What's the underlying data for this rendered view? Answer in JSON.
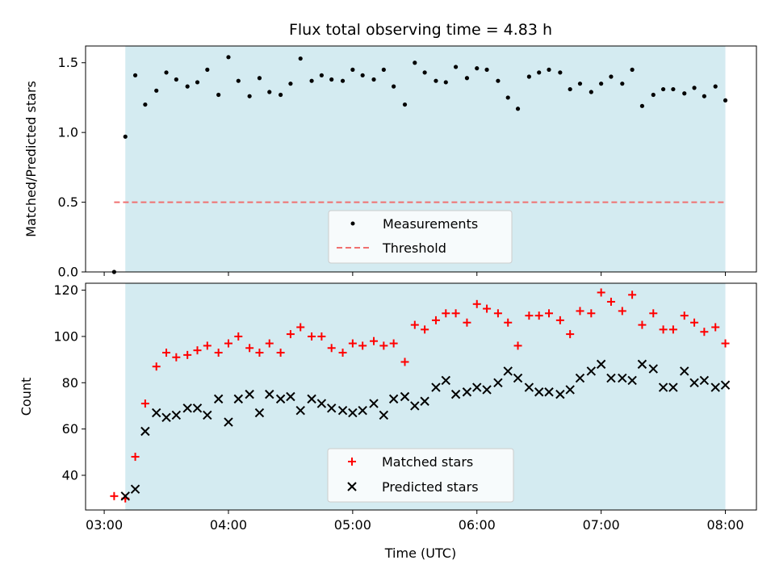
{
  "chart_data": [
    {
      "type": "scatter",
      "title": "Flux total observing time = 4.83 h",
      "ylabel": "Matched/Predicted stars",
      "xlabel": "",
      "x_unit": "hours UTC",
      "xlim": [
        2.85,
        8.25
      ],
      "ylim": [
        0.0,
        1.62
      ],
      "yticks": [
        0.0,
        0.5,
        1.0,
        1.5
      ],
      "ytick_labels": [
        "0.0",
        "0.5",
        "1.0",
        "1.5"
      ],
      "xticks": [
        3,
        4,
        5,
        6,
        7,
        8
      ],
      "shaded_span": [
        3.17,
        8.0
      ],
      "shade_color": "#d4ebf1",
      "legend_position": "lower center",
      "series": [
        {
          "name": "Measurements",
          "marker": "dot",
          "color": "#000000",
          "x": [
            3.08,
            3.17,
            3.25,
            3.33,
            3.42,
            3.5,
            3.58,
            3.67,
            3.75,
            3.83,
            3.92,
            4.0,
            4.08,
            4.17,
            4.25,
            4.33,
            4.42,
            4.5,
            4.58,
            4.67,
            4.75,
            4.83,
            4.92,
            5.0,
            5.08,
            5.17,
            5.25,
            5.33,
            5.42,
            5.5,
            5.58,
            5.67,
            5.75,
            5.83,
            5.92,
            6.0,
            6.08,
            6.17,
            6.25,
            6.33,
            6.42,
            6.5,
            6.58,
            6.67,
            6.75,
            6.83,
            6.92,
            7.0,
            7.08,
            7.17,
            7.25,
            7.33,
            7.42,
            7.5,
            7.58,
            7.67,
            7.75,
            7.83,
            7.92,
            8.0
          ],
          "y": [
            0.0,
            0.97,
            1.41,
            1.2,
            1.3,
            1.43,
            1.38,
            1.33,
            1.36,
            1.45,
            1.27,
            1.54,
            1.37,
            1.26,
            1.39,
            1.29,
            1.27,
            1.35,
            1.53,
            1.37,
            1.41,
            1.38,
            1.37,
            1.45,
            1.41,
            1.38,
            1.45,
            1.33,
            1.2,
            1.5,
            1.43,
            1.37,
            1.36,
            1.47,
            1.39,
            1.46,
            1.45,
            1.37,
            1.25,
            1.17,
            1.4,
            1.43,
            1.45,
            1.43,
            1.31,
            1.35,
            1.29,
            1.35,
            1.4,
            1.35,
            1.45,
            1.19,
            1.27,
            1.31,
            1.31,
            1.28,
            1.32,
            1.26,
            1.33,
            1.23
          ]
        },
        {
          "name": "Threshold",
          "marker": "dashed-line",
          "color": "#f07070",
          "x": [
            3.08,
            8.0
          ],
          "y": [
            0.5,
            0.5
          ]
        }
      ]
    },
    {
      "type": "scatter",
      "title": "",
      "ylabel": "Count",
      "xlabel": "Time (UTC)",
      "x_unit": "hours UTC",
      "xlim": [
        2.85,
        8.25
      ],
      "ylim": [
        25,
        123
      ],
      "yticks": [
        40,
        60,
        80,
        100,
        120
      ],
      "ytick_labels": [
        "40",
        "60",
        "80",
        "100",
        "120"
      ],
      "xticks": [
        3,
        4,
        5,
        6,
        7,
        8
      ],
      "xtick_labels": [
        "03:00",
        "04:00",
        "05:00",
        "06:00",
        "07:00",
        "08:00"
      ],
      "shaded_span": [
        3.17,
        8.0
      ],
      "shade_color": "#d4ebf1",
      "legend_position": "lower center",
      "series": [
        {
          "name": "Matched stars",
          "marker": "plus",
          "color": "#ff0000",
          "x": [
            3.08,
            3.17,
            3.25,
            3.33,
            3.42,
            3.5,
            3.58,
            3.67,
            3.75,
            3.83,
            3.92,
            4.0,
            4.08,
            4.17,
            4.25,
            4.33,
            4.42,
            4.5,
            4.58,
            4.67,
            4.75,
            4.83,
            4.92,
            5.0,
            5.08,
            5.17,
            5.25,
            5.33,
            5.42,
            5.5,
            5.58,
            5.67,
            5.75,
            5.83,
            5.92,
            6.0,
            6.08,
            6.17,
            6.25,
            6.33,
            6.42,
            6.5,
            6.58,
            6.67,
            6.75,
            6.83,
            6.92,
            7.0,
            7.08,
            7.17,
            7.25,
            7.33,
            7.42,
            7.5,
            7.58,
            7.67,
            7.75,
            7.83,
            7.92,
            8.0
          ],
          "y": [
            31,
            30,
            48,
            71,
            87,
            93,
            91,
            92,
            94,
            96,
            93,
            97,
            100,
            95,
            93,
            97,
            93,
            101,
            104,
            100,
            100,
            95,
            93,
            97,
            96,
            98,
            96,
            97,
            89,
            105,
            103,
            107,
            110,
            110,
            106,
            114,
            112,
            110,
            106,
            96,
            109,
            109,
            110,
            107,
            101,
            111,
            110,
            119,
            115,
            111,
            118,
            105,
            110,
            103,
            103,
            109,
            106,
            102,
            104,
            97
          ]
        },
        {
          "name": "Predicted stars",
          "marker": "x",
          "color": "#000000",
          "x": [
            3.17,
            3.25,
            3.33,
            3.42,
            3.5,
            3.58,
            3.67,
            3.75,
            3.83,
            3.92,
            4.0,
            4.08,
            4.17,
            4.25,
            4.33,
            4.42,
            4.5,
            4.58,
            4.67,
            4.75,
            4.83,
            4.92,
            5.0,
            5.08,
            5.17,
            5.25,
            5.33,
            5.42,
            5.5,
            5.58,
            5.67,
            5.75,
            5.83,
            5.92,
            6.0,
            6.08,
            6.17,
            6.25,
            6.33,
            6.42,
            6.5,
            6.58,
            6.67,
            6.75,
            6.83,
            6.92,
            7.0,
            7.08,
            7.17,
            7.25,
            7.33,
            7.42,
            7.5,
            7.58,
            7.67,
            7.75,
            7.83,
            7.92,
            8.0
          ],
          "y": [
            31,
            34,
            59,
            67,
            65,
            66,
            69,
            69,
            66,
            73,
            63,
            73,
            75,
            67,
            75,
            73,
            74,
            68,
            73,
            71,
            69,
            68,
            67,
            68,
            71,
            66,
            73,
            74,
            70,
            72,
            78,
            81,
            75,
            76,
            78,
            77,
            80,
            85,
            82,
            78,
            76,
            76,
            75,
            77,
            82,
            85,
            88,
            82,
            82,
            81,
            88,
            86,
            78,
            78,
            85,
            80,
            81,
            78,
            79
          ]
        }
      ]
    }
  ]
}
